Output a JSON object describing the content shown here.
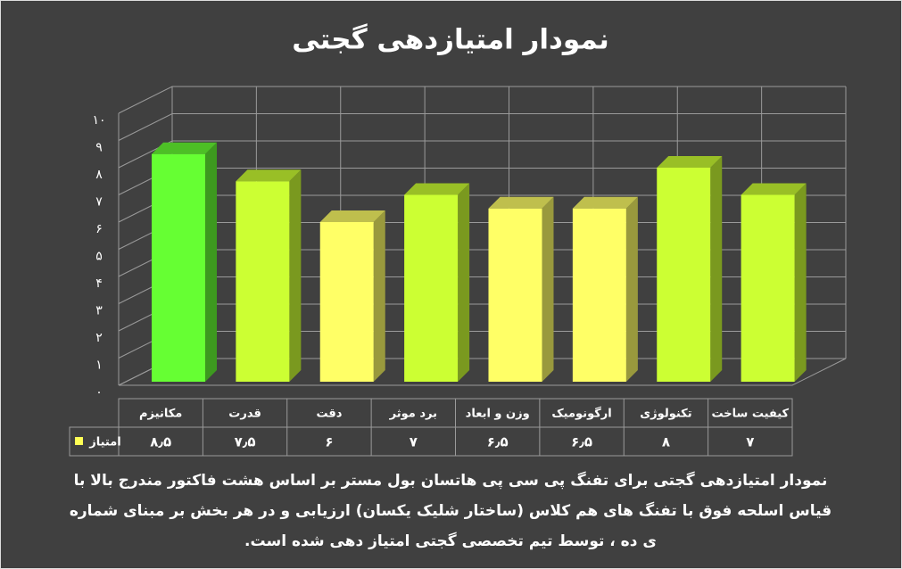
{
  "chart_data": {
    "type": "bar3d",
    "title": "نمودار امتیازدهی گجتی",
    "categories": [
      "مکانیزم",
      "قدرت",
      "دقت",
      "برد موثر",
      "وزن و ابعاد",
      "ارگونومیک",
      "تکنولوژی",
      "کیفیت ساخت"
    ],
    "series": [
      {
        "name": "امتیاز",
        "color": "#ffff55",
        "colors": [
          "#66ff33",
          "#ccff33",
          "#ffff66",
          "#ccff33",
          "#ffff66",
          "#ffff66",
          "#ccff33",
          "#ccff33"
        ],
        "values": [
          8.5,
          7.5,
          6,
          7,
          6.5,
          6.5,
          8,
          7
        ],
        "value_labels": [
          "۸٫۵",
          "۷٫۵",
          "۶",
          "۷",
          "۶٫۵",
          "۶٫۵",
          "۸",
          "۷"
        ]
      }
    ],
    "ylim": [
      0,
      10
    ],
    "yticks": [
      {
        "value": 0,
        "label": "۰"
      },
      {
        "value": 1,
        "label": "۱"
      },
      {
        "value": 2,
        "label": "۲"
      },
      {
        "value": 3,
        "label": "۳"
      },
      {
        "value": 4,
        "label": "۴"
      },
      {
        "value": 5,
        "label": "۵"
      },
      {
        "value": 6,
        "label": "۶"
      },
      {
        "value": 7,
        "label": "۷"
      },
      {
        "value": 8,
        "label": "۸"
      },
      {
        "value": 9,
        "label": "۹"
      },
      {
        "value": 10,
        "label": "۱۰"
      }
    ],
    "grid": true,
    "note": "نمودار امتیازدهی گجتی برای تفنگ پی سی پی هاتسان بول مستر بر اساس هشت فاکتور مندرج بالا با قیاس اسلحه فوق با تفنگ های هم کلاس (ساختار شلیک یکسان) ارزیابی و در هر بخش بر مبنای شماره ی ده ، توسط تیم تخصصی گجتی امتیاز دهی شده است."
  }
}
